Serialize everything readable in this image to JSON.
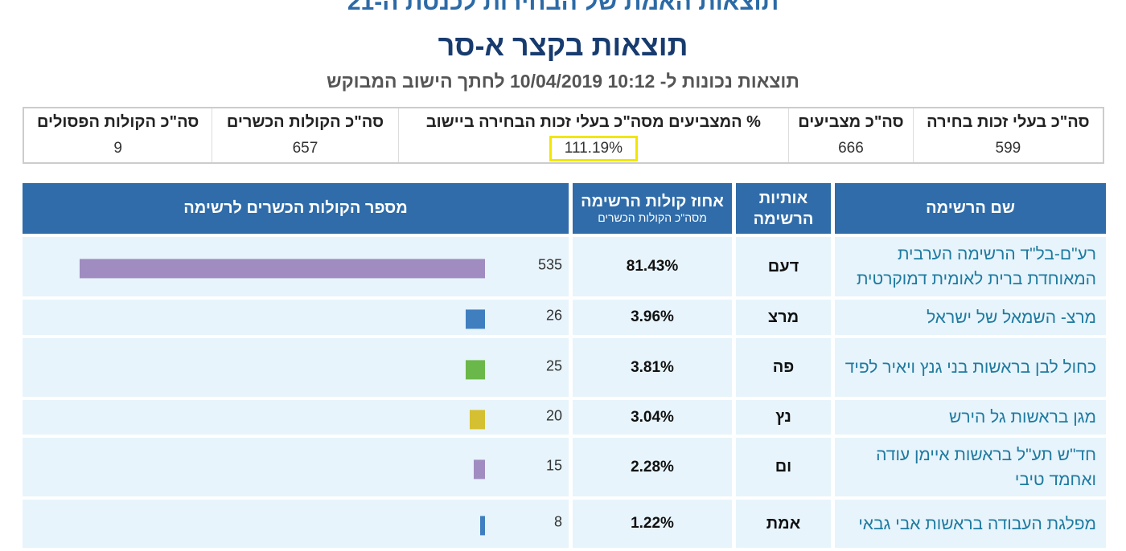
{
  "header": {
    "top_title": "תוצאות האמת של הבחירות לכנסת ה-21",
    "title": "תוצאות בקצר א-סר",
    "subtitle": "תוצאות נכונות ל- 10:12 10/04/2019  לחתך הישוב המבוקש"
  },
  "summary": [
    {
      "label": "סה\"כ בעלי זכות בחירה",
      "value": "599"
    },
    {
      "label": "סה\"כ מצביעים",
      "value": "666"
    },
    {
      "label": "% המצביעים מסה\"כ בעלי זכות הבחירה ביישוב",
      "value": "111.19%"
    },
    {
      "label": "סה\"כ הקולות הכשרים",
      "value": "657"
    },
    {
      "label": "סה\"כ הקולות הפסולים",
      "value": "9"
    }
  ],
  "table": {
    "headers": {
      "name": "שם הרשימה",
      "letters_1": "אותיות",
      "letters_2": "הרשימה",
      "pct": "אחוז קולות הרשימה",
      "pct_sub": "מסה\"כ הקולות הכשרים",
      "votes": "מספר הקולות הכשרים לרשימה"
    },
    "rows": [
      {
        "name": "רע\"ם-בל\"ד הרשימה הערבית המאוחדת ברית לאומית דמוקרטית",
        "letters": "דעם",
        "pct": "81.43%",
        "votes": 535,
        "color": "#a08cc0"
      },
      {
        "name": "מרצ- השמאל של ישראל",
        "letters": "מרצ",
        "pct": "3.96%",
        "votes": 26,
        "color": "#3f7fc0"
      },
      {
        "name": "כחול לבן בראשות בני גנץ ויאיר לפיד",
        "letters": "פה",
        "pct": "3.81%",
        "votes": 25,
        "color": "#6ab84a"
      },
      {
        "name": "מגן בראשות גל הירש",
        "letters": "נץ",
        "pct": "3.04%",
        "votes": 20,
        "color": "#d4c030"
      },
      {
        "name": "חד\"ש תע\"ל בראשות איימן עודה ואחמד טיבי",
        "letters": "ום",
        "pct": "2.28%",
        "votes": 15,
        "color": "#a08cc0"
      },
      {
        "name": "מפלגת העבודה בראשות אבי גבאי",
        "letters": "אמת",
        "pct": "1.22%",
        "votes": 8,
        "color": "#3f7fc0"
      }
    ]
  }
}
